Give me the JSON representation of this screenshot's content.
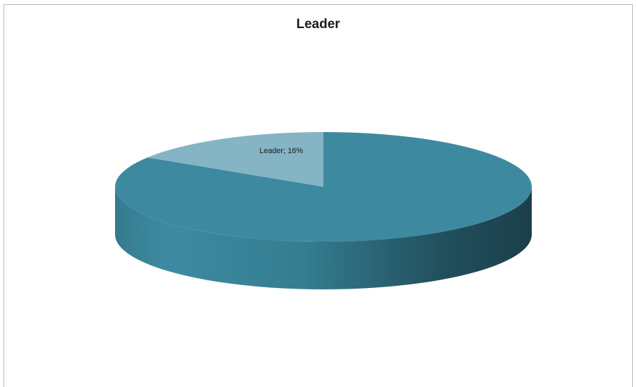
{
  "chart_data": {
    "type": "pie",
    "title": "Leader",
    "slices": [
      {
        "label": "Leader",
        "value": 16,
        "color": "#85b4c5",
        "data_label": "Leader; 16%"
      },
      {
        "label": "",
        "value": 84,
        "color": "#3d8aa0",
        "data_label": ""
      }
    ],
    "legend": "none",
    "style": "3d"
  }
}
